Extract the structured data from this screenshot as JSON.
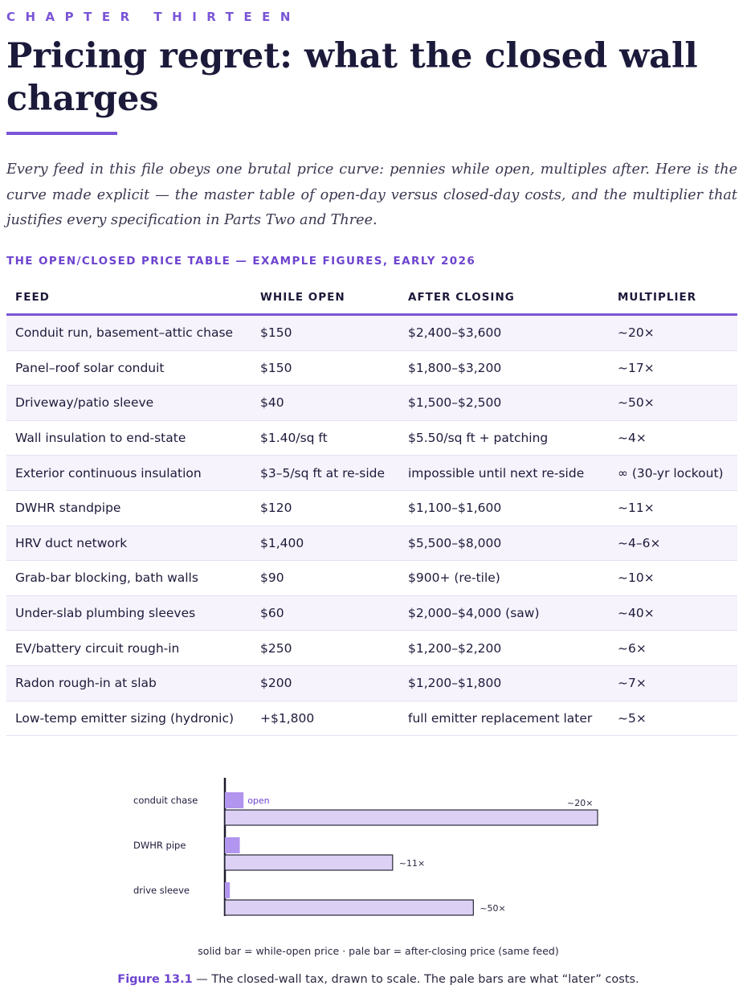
{
  "header": {
    "kicker": "CHAPTER THIRTEEN",
    "title": "Pricing regret: what the closed wall charges",
    "lede": "Every feed in this file obeys one brutal price curve: pennies while open, multiples after. Here is the curve made explicit — the master table of open-day versus closed-day costs, and the multiplier that justifies every specification in Parts Two and Three."
  },
  "table": {
    "caption": "THE OPEN/CLOSED PRICE TABLE — EXAMPLE FIGURES, EARLY 2026",
    "columns": [
      "FEED",
      "WHILE OPEN",
      "AFTER CLOSING",
      "MULTIPLIER"
    ],
    "rows": [
      [
        "Conduit run, basement–attic chase",
        "$150",
        "$2,400–$3,600",
        "~20×"
      ],
      [
        "Panel–roof solar conduit",
        "$150",
        "$1,800–$3,200",
        "~17×"
      ],
      [
        "Driveway/patio sleeve",
        "$40",
        "$1,500–$2,500",
        "~50×"
      ],
      [
        "Wall insulation to end-state",
        "$1.40/sq ft",
        "$5.50/sq ft + patching",
        "~4×"
      ],
      [
        "Exterior continuous insulation",
        "$3–5/sq ft at re-side",
        "impossible until next re-side",
        "∞ (30-yr lockout)"
      ],
      [
        "DWHR standpipe",
        "$120",
        "$1,100–$1,600",
        "~11×"
      ],
      [
        "HRV duct network",
        "$1,400",
        "$5,500–$8,000",
        "~4–6×"
      ],
      [
        "Grab-bar blocking, bath walls",
        "$90",
        "$900+ (re-tile)",
        "~10×"
      ],
      [
        "Under-slab plumbing sleeves",
        "$60",
        "$2,000–$4,000 (saw)",
        "~40×"
      ],
      [
        "EV/battery circuit rough-in",
        "$250",
        "$1,200–$2,200",
        "~6×"
      ],
      [
        "Radon rough-in at slab",
        "$200",
        "$1,200–$1,800",
        "~7×"
      ],
      [
        "Low-temp emitter sizing (hydronic)",
        "+$1,800",
        "full emitter replacement later",
        "~5×"
      ]
    ]
  },
  "chart_data": {
    "type": "bar",
    "categories": [
      "conduit chase",
      "DWHR pipe",
      "drive sleeve"
    ],
    "series": [
      {
        "values": [
          150,
          120,
          40
        ],
        "labels": [
          "open",
          "",
          ""
        ]
      },
      {
        "values": [
          3000,
          1350,
          2000
        ],
        "labels": [
          "~20×",
          "~11×",
          "~50×"
        ]
      }
    ],
    "colors": {
      "open": "#b195ee",
      "closed": "#dcd1f4",
      "outline": "#2a2a3a",
      "axis": "#1a1a2a"
    },
    "legend": "solid bar = while-open price · pale bar = after-closing price (same feed)"
  },
  "figure": {
    "label": "Figure 13.1",
    "text": " — The closed-wall tax, drawn to scale. The pale bars are what “later” costs."
  }
}
